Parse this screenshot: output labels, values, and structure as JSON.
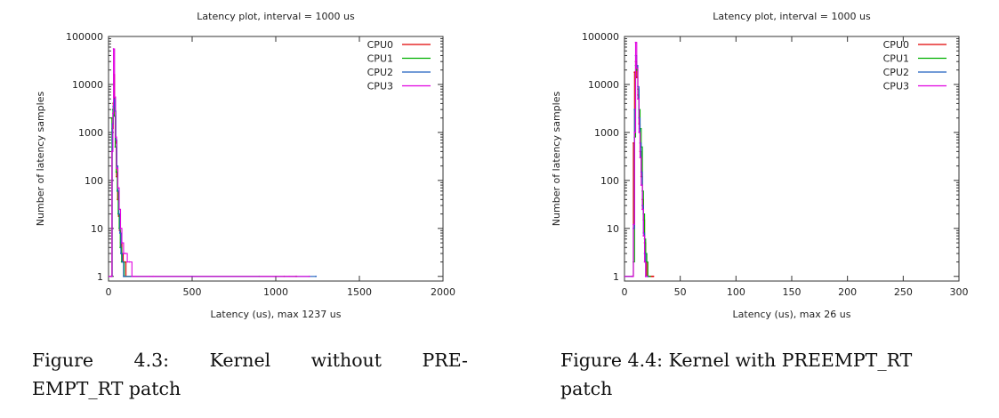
{
  "chart_data": [
    {
      "type": "line",
      "scale": "log-y",
      "title": "Latency plot, interval = 1000 us",
      "xlabel": "Latency (us), max 1237 us",
      "ylabel": "Number of latency samples",
      "xlim": [
        0,
        2000
      ],
      "ylim": [
        0.8,
        100000
      ],
      "xticks": [
        "0",
        "500",
        "1000",
        "1500",
        "2000"
      ],
      "yticks": [
        "1",
        "10",
        "100",
        "1000",
        "10000",
        "100000"
      ],
      "legend_position": "top-right",
      "series": [
        {
          "name": "CPU0",
          "color": "#e00000",
          "points": [
            [
              0,
              1
            ],
            [
              18,
              1
            ],
            [
              22,
              1200
            ],
            [
              28,
              4000
            ],
            [
              32,
              16000
            ],
            [
              36,
              3000
            ],
            [
              42,
              600
            ],
            [
              48,
              120
            ],
            [
              54,
              40
            ],
            [
              60,
              18
            ],
            [
              66,
              9
            ],
            [
              72,
              5
            ],
            [
              80,
              3
            ],
            [
              88,
              2
            ],
            [
              96,
              2
            ],
            [
              104,
              1
            ],
            [
              1050,
              1
            ],
            [
              1120,
              1
            ],
            [
              1125,
              1
            ]
          ]
        },
        {
          "name": "CPU1",
          "color": "#00b000",
          "points": [
            [
              0,
              1
            ],
            [
              16,
              1
            ],
            [
              20,
              2000
            ],
            [
              26,
              3000
            ],
            [
              30,
              4200
            ],
            [
              34,
              2200
            ],
            [
              40,
              500
            ],
            [
              46,
              150
            ],
            [
              52,
              60
            ],
            [
              58,
              20
            ],
            [
              64,
              10
            ],
            [
              70,
              4
            ],
            [
              78,
              2
            ],
            [
              86,
              2
            ],
            [
              94,
              1
            ],
            [
              900,
              1
            ]
          ]
        },
        {
          "name": "CPU2",
          "color": "#1f5fbf",
          "points": [
            [
              0,
              1
            ],
            [
              18,
              1
            ],
            [
              22,
              1500
            ],
            [
              28,
              3500
            ],
            [
              34,
              5000
            ],
            [
              38,
              2800
            ],
            [
              44,
              700
            ],
            [
              50,
              200
            ],
            [
              56,
              60
            ],
            [
              62,
              20
            ],
            [
              68,
              8
            ],
            [
              74,
              3
            ],
            [
              82,
              2
            ],
            [
              90,
              1
            ],
            [
              500,
              1
            ],
            [
              1240,
              1
            ]
          ]
        },
        {
          "name": "CPU3",
          "color": "#e000e0",
          "points": [
            [
              0,
              1
            ],
            [
              16,
              1
            ],
            [
              20,
              400
            ],
            [
              26,
              2500
            ],
            [
              30,
              55000
            ],
            [
              36,
              5500
            ],
            [
              42,
              800
            ],
            [
              48,
              180
            ],
            [
              56,
              70
            ],
            [
              64,
              25
            ],
            [
              72,
              10
            ],
            [
              80,
              5
            ],
            [
              90,
              3
            ],
            [
              100,
              3
            ],
            [
              112,
              2
            ],
            [
              124,
              2
            ],
            [
              140,
              1
            ],
            [
              160,
              1
            ],
            [
              240,
              1
            ],
            [
              270,
              1
            ],
            [
              1080,
              1
            ],
            [
              1200,
              1
            ]
          ]
        }
      ]
    },
    {
      "type": "line",
      "scale": "log-y",
      "title": "Latency plot, interval = 1000 us",
      "xlabel": "Latency (us), max 26 us",
      "ylabel": "Number of latency samples",
      "xlim": [
        0,
        300
      ],
      "ylim": [
        0.8,
        100000
      ],
      "xticks": [
        "0",
        "50",
        "100",
        "150",
        "200",
        "250",
        "300"
      ],
      "yticks": [
        "1",
        "10",
        "100",
        "1000",
        "10000",
        "100000"
      ],
      "legend_position": "top-right",
      "series": [
        {
          "name": "CPU0",
          "color": "#e00000",
          "points": [
            [
              0,
              1
            ],
            [
              7,
              1
            ],
            [
              8,
              600
            ],
            [
              9,
              18000
            ],
            [
              10,
              30000
            ],
            [
              11,
              14000
            ],
            [
              12,
              6000
            ],
            [
              13,
              1500
            ],
            [
              14,
              400
            ],
            [
              15,
              120
            ],
            [
              16,
              40
            ],
            [
              17,
              15
            ],
            [
              18,
              5
            ],
            [
              19,
              2
            ],
            [
              20,
              1
            ],
            [
              21,
              1
            ],
            [
              22,
              1
            ],
            [
              24,
              1
            ],
            [
              25,
              1
            ],
            [
              26,
              1
            ]
          ]
        },
        {
          "name": "CPU1",
          "color": "#00b000",
          "points": [
            [
              0,
              1
            ],
            [
              7,
              1
            ],
            [
              8,
              2
            ],
            [
              9,
              800
            ],
            [
              10,
              25000
            ],
            [
              11,
              20000
            ],
            [
              12,
              8000
            ],
            [
              13,
              3000
            ],
            [
              14,
              1200
            ],
            [
              15,
              500
            ],
            [
              16,
              60
            ],
            [
              17,
              20
            ],
            [
              18,
              6
            ],
            [
              19,
              3
            ],
            [
              20,
              2
            ],
            [
              21,
              1
            ],
            [
              23,
              1
            ]
          ]
        },
        {
          "name": "CPU2",
          "color": "#1f5fbf",
          "points": [
            [
              0,
              1
            ],
            [
              7,
              1
            ],
            [
              8,
              10
            ],
            [
              9,
              3000
            ],
            [
              10,
              40000
            ],
            [
              11,
              25000
            ],
            [
              12,
              9000
            ],
            [
              13,
              2000
            ],
            [
              14,
              600
            ],
            [
              15,
              150
            ],
            [
              16,
              30
            ],
            [
              17,
              8
            ],
            [
              18,
              3
            ],
            [
              19,
              1
            ],
            [
              21,
              1
            ]
          ]
        },
        {
          "name": "CPU3",
          "color": "#e000e0",
          "points": [
            [
              0,
              1
            ],
            [
              7,
              1
            ],
            [
              8,
              12
            ],
            [
              9,
              1000
            ],
            [
              10,
              75000
            ],
            [
              11,
              22000
            ],
            [
              12,
              5000
            ],
            [
              13,
              1000
            ],
            [
              14,
              300
            ],
            [
              15,
              80
            ],
            [
              16,
              25
            ],
            [
              17,
              7
            ],
            [
              18,
              2
            ],
            [
              19,
              1
            ],
            [
              20,
              1
            ]
          ]
        }
      ]
    }
  ],
  "captions": [
    {
      "line1_label": "Figure",
      "line1_number": "4.3:",
      "line1_w1": "Kernel",
      "line1_w2": "without",
      "line1_w3": "PRE-",
      "line2": "EMPT_RT patch"
    },
    {
      "line1": "Figure 4.4: Kernel with PREEMPT_RT",
      "line2": "patch"
    }
  ]
}
